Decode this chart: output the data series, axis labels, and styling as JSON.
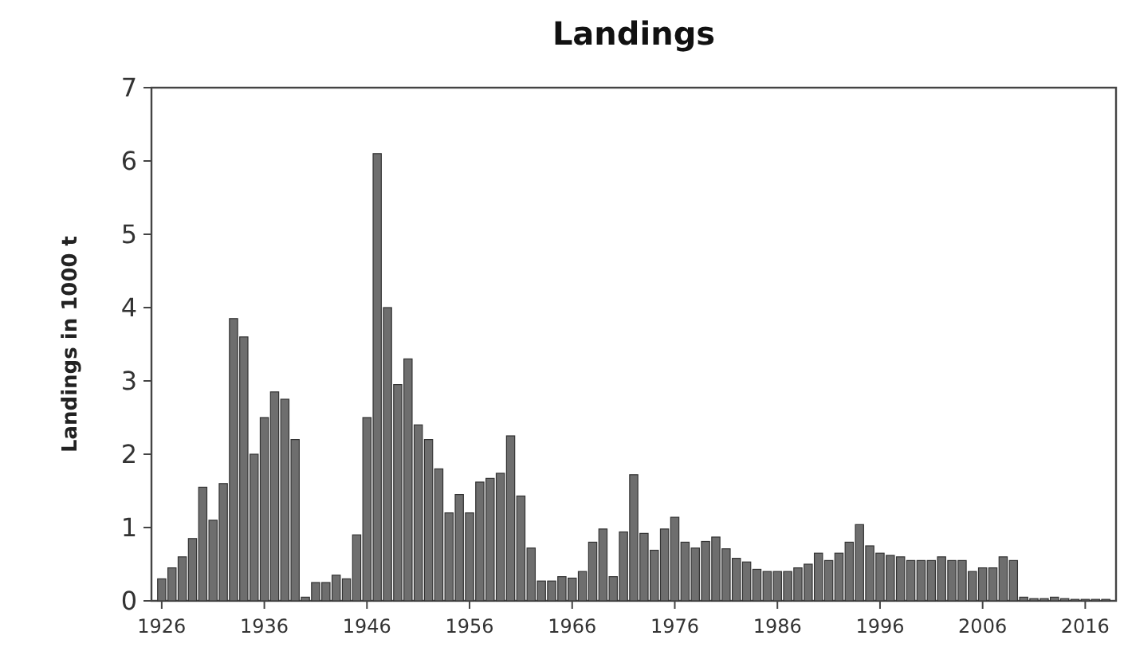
{
  "chart_data": {
    "type": "bar",
    "title": "Landings",
    "ylabel": "Landings in 1000 t",
    "x": [
      1926,
      1927,
      1928,
      1929,
      1930,
      1931,
      1932,
      1933,
      1934,
      1935,
      1936,
      1937,
      1938,
      1939,
      1940,
      1941,
      1942,
      1943,
      1944,
      1945,
      1946,
      1947,
      1948,
      1949,
      1950,
      1951,
      1952,
      1953,
      1954,
      1955,
      1956,
      1957,
      1958,
      1959,
      1960,
      1961,
      1962,
      1963,
      1964,
      1965,
      1966,
      1967,
      1968,
      1969,
      1970,
      1971,
      1972,
      1973,
      1974,
      1975,
      1976,
      1977,
      1978,
      1979,
      1980,
      1981,
      1982,
      1983,
      1984,
      1985,
      1986,
      1987,
      1988,
      1989,
      1990,
      1991,
      1992,
      1993,
      1994,
      1995,
      1996,
      1997,
      1998,
      1999,
      2000,
      2001,
      2002,
      2003,
      2004,
      2005,
      2006,
      2007,
      2008,
      2009,
      2010,
      2011,
      2012,
      2013,
      2014,
      2015,
      2016,
      2017,
      2018
    ],
    "values": [
      0.3,
      0.45,
      0.6,
      0.85,
      1.55,
      1.1,
      1.6,
      3.85,
      3.6,
      2.0,
      2.5,
      2.85,
      2.75,
      2.2,
      0.05,
      0.25,
      0.25,
      0.35,
      0.3,
      0.9,
      2.5,
      6.1,
      4.0,
      2.95,
      3.3,
      2.4,
      2.2,
      1.8,
      1.2,
      1.45,
      1.2,
      1.62,
      1.67,
      1.74,
      2.25,
      1.43,
      0.72,
      0.27,
      0.27,
      0.33,
      0.31,
      0.4,
      0.8,
      0.98,
      0.33,
      0.94,
      1.72,
      0.92,
      0.69,
      0.98,
      1.14,
      0.8,
      0.72,
      0.81,
      0.87,
      0.71,
      0.58,
      0.53,
      0.43,
      0.4,
      0.4,
      0.4,
      0.45,
      0.5,
      0.65,
      0.55,
      0.65,
      0.8,
      1.04,
      0.75,
      0.65,
      0.62,
      0.6,
      0.55,
      0.55,
      0.55,
      0.6,
      0.55,
      0.55,
      0.4,
      0.45,
      0.45,
      0.6,
      0.55,
      0.05,
      0.03,
      0.03,
      0.05,
      0.03,
      0.02,
      0.02,
      0.02,
      0.02
    ],
    "color": "#6e6e6e",
    "xlim": [
      1925,
      2019
    ],
    "xticks": [
      1926,
      1936,
      1946,
      1956,
      1966,
      1976,
      1986,
      1996,
      2006,
      2016
    ],
    "ylim": [
      0,
      7
    ],
    "yticks": [
      0,
      1,
      2,
      3,
      4,
      5,
      6,
      7
    ]
  }
}
